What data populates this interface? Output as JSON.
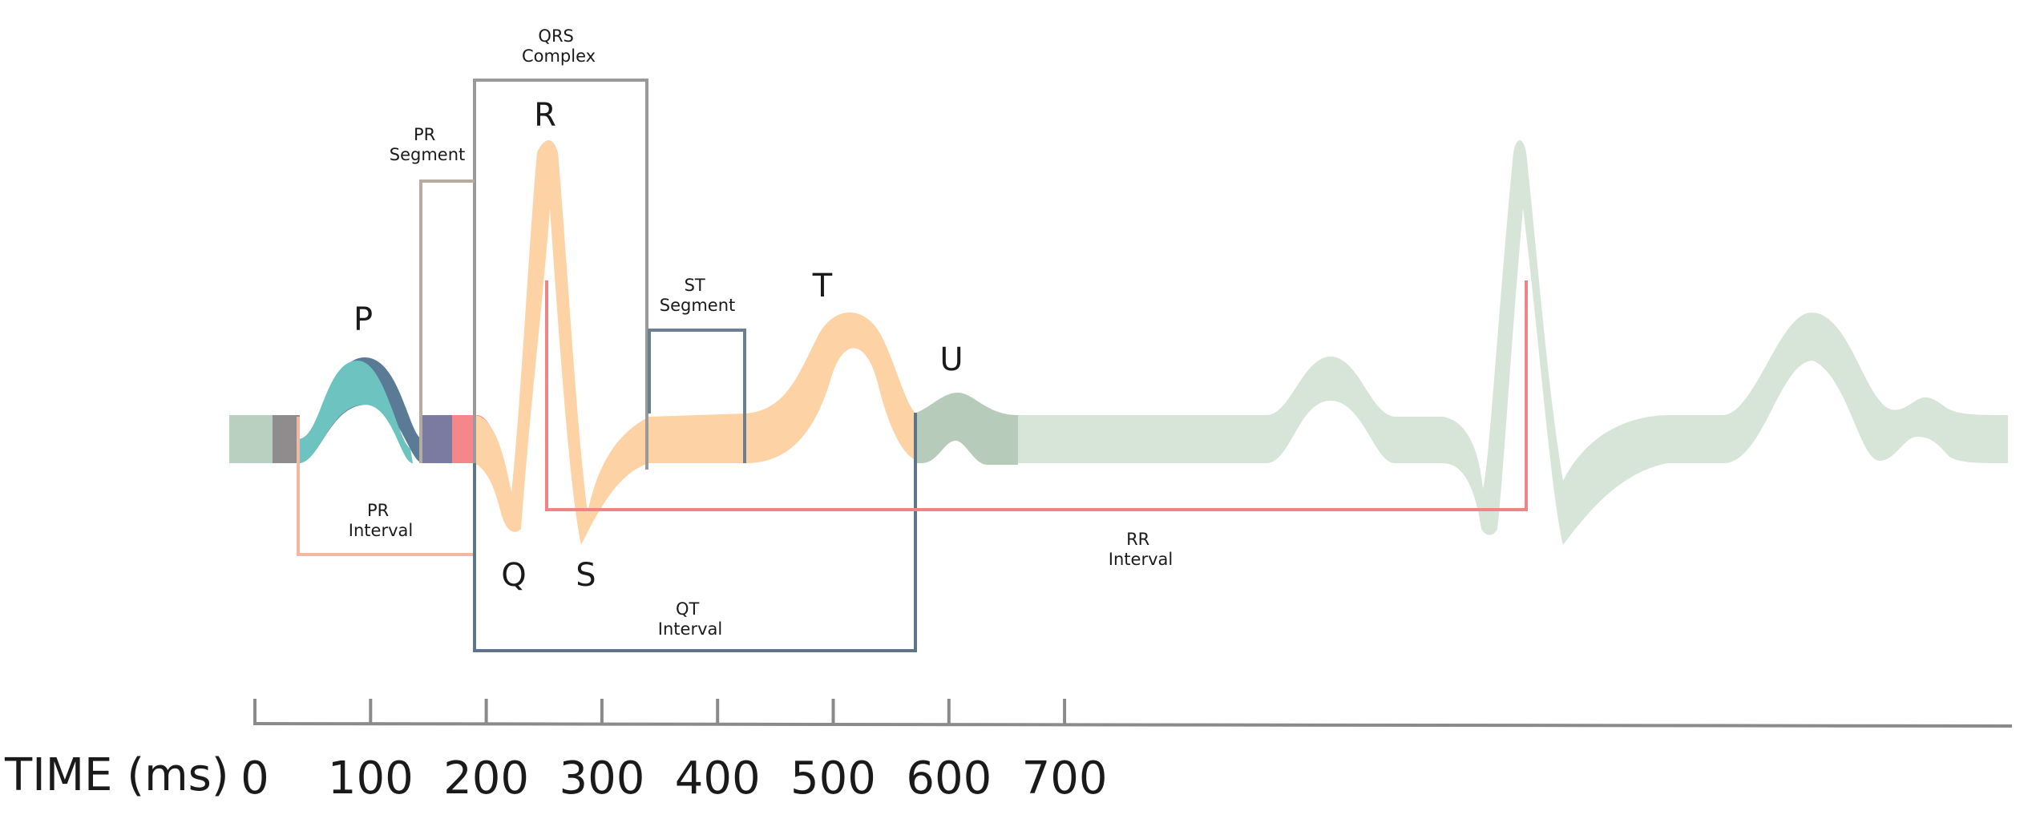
{
  "waves": {
    "p": "P",
    "q": "Q",
    "r": "R",
    "s": "S",
    "t": "T",
    "u": "U"
  },
  "annotations": {
    "qrs_complex": [
      "QRS",
      "Complex"
    ],
    "pr_segment": [
      "PR",
      "Segment"
    ],
    "st_segment": [
      "ST",
      "Segment"
    ],
    "pr_interval": [
      "PR",
      "Interval"
    ],
    "qt_interval": [
      "QT",
      "Interval"
    ],
    "rr_interval": [
      "RR",
      "Interval"
    ]
  },
  "time_axis": {
    "title": "TIME (ms)",
    "ticks": [
      "0",
      "100",
      "200",
      "300",
      "400",
      "500",
      "600",
      "700"
    ]
  },
  "colors": {
    "baseline": "#b9cfbf",
    "p_wave": "#6cc3bf",
    "p_shadow": "#5a7a96",
    "pr_segment_fill": "#7b7aa0",
    "qrs_start": "#f5878a",
    "main_wave": "#fdd2a4",
    "u_wave": "#b7cbbb",
    "next_beat": "#d6e5d8",
    "pr_interval_line": "#f3b8a3",
    "pr_segment_line": "#b5ab9f",
    "qrs_line": "#9a9a9a",
    "st_line": "#6b7f8f",
    "qt_line": "#5d7489",
    "rr_line": "#ef8486",
    "axis": "#8a8a8a"
  }
}
